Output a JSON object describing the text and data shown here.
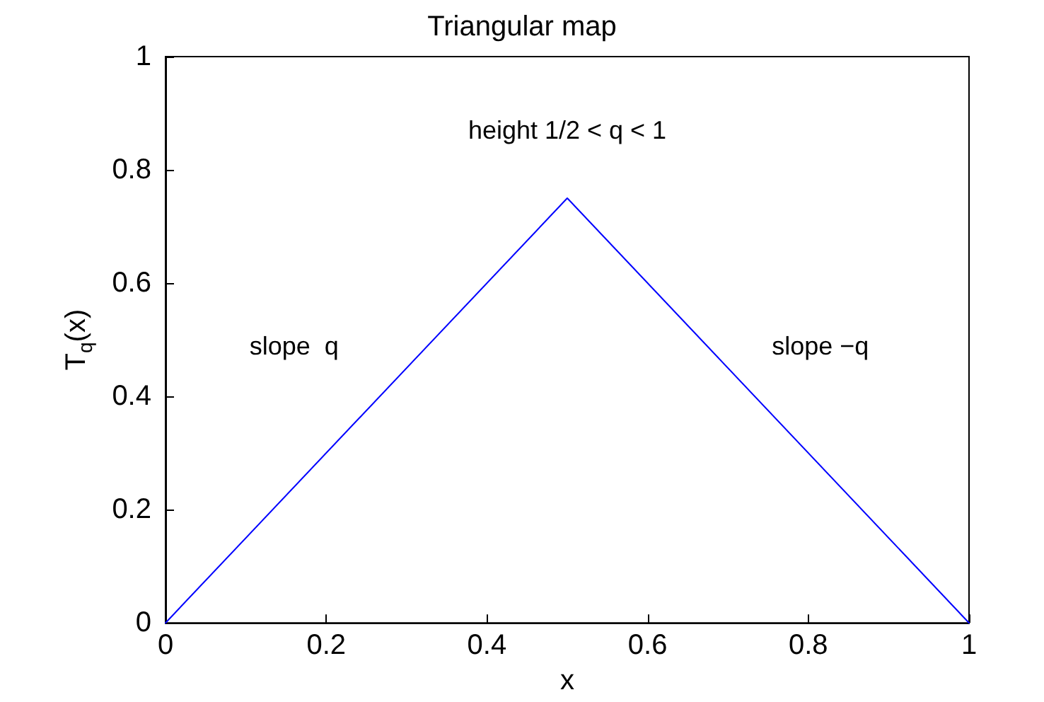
{
  "chart_data": {
    "type": "line",
    "title": "Triangular map",
    "xlabel": "x",
    "ylabel": "T$_{q}$(x)",
    "x": [
      0,
      0.5,
      1
    ],
    "series": [
      {
        "color": "#0000ff",
        "values": [
          0,
          0.75,
          0
        ]
      }
    ],
    "xlim": [
      0,
      1
    ],
    "xticks": [
      0,
      0.2,
      0.4,
      0.6,
      0.8,
      1
    ],
    "ylim": [
      0,
      1
    ],
    "yticks": [
      0,
      0.2,
      0.4,
      0.6,
      0.8,
      1
    ],
    "grid": false,
    "marker": "none",
    "line_style": "solid",
    "annotations": [
      "height 1/2 < q < 1",
      "slope  q",
      "slope −q"
    ]
  }
}
